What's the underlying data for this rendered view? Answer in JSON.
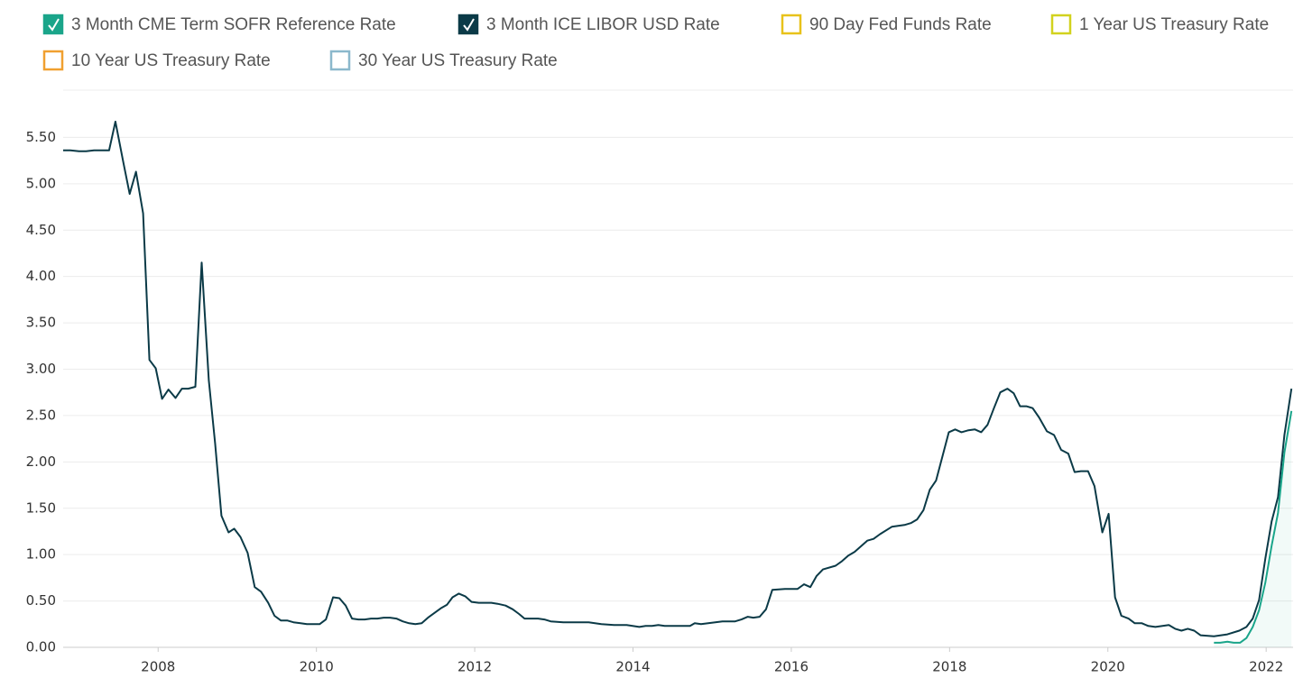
{
  "chart_data": {
    "type": "line",
    "series": [
      {
        "name": "3 Month CME Term SOFR Reference Rate",
        "color": "#1aa58a",
        "visible": true,
        "area": true,
        "x": [
          2021.34,
          2021.42,
          2021.51,
          2021.59,
          2021.67,
          2021.75,
          2021.83,
          2021.91,
          2021.99,
          2022.07,
          2022.15,
          2022.23,
          2022.32
        ],
        "values": [
          0.05,
          0.05,
          0.06,
          0.05,
          0.05,
          0.1,
          0.22,
          0.4,
          0.7,
          1.1,
          1.45,
          2.1,
          2.55
        ]
      },
      {
        "name": "3 Month ICE LIBOR USD Rate",
        "color": "#0b3a47",
        "visible": true,
        "area": false,
        "x": [
          2006.8,
          2006.89,
          2007.0,
          2007.09,
          2007.19,
          2007.29,
          2007.38,
          2007.46,
          2007.56,
          2007.64,
          2007.72,
          2007.81,
          2007.89,
          2007.97,
          2008.05,
          2008.13,
          2008.22,
          2008.3,
          2008.38,
          2008.47,
          2008.55,
          2008.64,
          2008.72,
          2008.8,
          2008.89,
          2008.96,
          2009.04,
          2009.13,
          2009.22,
          2009.3,
          2009.39,
          2009.47,
          2009.55,
          2009.63,
          2009.71,
          2009.8,
          2009.88,
          2009.96,
          2010.04,
          2010.12,
          2010.21,
          2010.29,
          2010.37,
          2010.45,
          2010.53,
          2010.61,
          2010.69,
          2010.77,
          2010.85,
          2010.93,
          2011.01,
          2011.09,
          2011.17,
          2011.25,
          2011.33,
          2011.41,
          2011.57,
          2011.65,
          2011.72,
          2011.8,
          2011.88,
          2011.96,
          2012.05,
          2012.21,
          2012.29,
          2012.39,
          2012.48,
          2012.56,
          2012.63,
          2012.8,
          2012.88,
          2012.96,
          2013.12,
          2013.44,
          2013.6,
          2013.76,
          2013.92,
          2014.08,
          2014.16,
          2014.24,
          2014.32,
          2014.4,
          2014.64,
          2014.72,
          2014.78,
          2014.86,
          2015.13,
          2015.29,
          2015.37,
          2015.45,
          2015.52,
          2015.6,
          2015.68,
          2015.76,
          2015.92,
          2016.08,
          2016.16,
          2016.24,
          2016.32,
          2016.4,
          2016.56,
          2016.64,
          2016.72,
          2016.8,
          2016.96,
          2017.04,
          2017.12,
          2017.27,
          2017.43,
          2017.51,
          2017.59,
          2017.67,
          2017.75,
          2017.83,
          2017.99,
          2018.07,
          2018.15,
          2018.23,
          2018.32,
          2018.4,
          2018.48,
          2018.56,
          2018.64,
          2018.73,
          2018.81,
          2018.89,
          2018.97,
          2019.05,
          2019.13,
          2019.23,
          2019.32,
          2019.41,
          2019.5,
          2019.58,
          2019.66,
          2019.75,
          2019.83,
          2019.93,
          2020.01,
          2020.09,
          2020.17,
          2020.26,
          2020.34,
          2020.43,
          2020.51,
          2020.6,
          2020.69,
          2020.77,
          2020.85,
          2020.93,
          2021.01,
          2021.09,
          2021.17,
          2021.34,
          2021.51,
          2021.66,
          2021.75,
          2021.83,
          2021.91,
          2021.99,
          2022.07,
          2022.15,
          2022.23,
          2022.32
        ],
        "values": [
          5.36,
          5.36,
          5.35,
          5.35,
          5.36,
          5.36,
          5.36,
          5.67,
          5.23,
          4.89,
          5.13,
          4.68,
          3.1,
          3.01,
          2.68,
          2.78,
          2.69,
          2.79,
          2.79,
          2.81,
          4.15,
          2.88,
          2.2,
          1.42,
          1.24,
          1.28,
          1.19,
          1.02,
          0.65,
          0.6,
          0.48,
          0.34,
          0.29,
          0.29,
          0.27,
          0.26,
          0.25,
          0.25,
          0.25,
          0.3,
          0.54,
          0.53,
          0.45,
          0.31,
          0.3,
          0.3,
          0.31,
          0.31,
          0.32,
          0.32,
          0.31,
          0.28,
          0.26,
          0.25,
          0.26,
          0.32,
          0.42,
          0.46,
          0.54,
          0.58,
          0.55,
          0.49,
          0.48,
          0.48,
          0.47,
          0.45,
          0.41,
          0.36,
          0.31,
          0.31,
          0.3,
          0.28,
          0.27,
          0.27,
          0.25,
          0.24,
          0.24,
          0.22,
          0.23,
          0.23,
          0.24,
          0.23,
          0.23,
          0.23,
          0.26,
          0.25,
          0.28,
          0.28,
          0.3,
          0.33,
          0.32,
          0.33,
          0.41,
          0.62,
          0.63,
          0.63,
          0.68,
          0.65,
          0.77,
          0.84,
          0.88,
          0.93,
          0.99,
          1.03,
          1.15,
          1.17,
          1.22,
          1.3,
          1.32,
          1.34,
          1.38,
          1.48,
          1.7,
          1.8,
          2.32,
          2.35,
          2.32,
          2.34,
          2.35,
          2.32,
          2.4,
          2.58,
          2.75,
          2.79,
          2.74,
          2.6,
          2.6,
          2.58,
          2.48,
          2.33,
          2.29,
          2.13,
          2.09,
          1.89,
          1.9,
          1.9,
          1.74,
          1.24,
          1.44,
          0.54,
          0.34,
          0.31,
          0.26,
          0.26,
          0.23,
          0.22,
          0.23,
          0.24,
          0.2,
          0.18,
          0.2,
          0.18,
          0.13,
          0.12,
          0.14,
          0.18,
          0.22,
          0.31,
          0.51,
          0.96,
          1.36,
          1.62,
          2.29,
          2.79
        ]
      },
      {
        "name": "90 Day Fed Funds Rate",
        "color": "#e8c21a",
        "visible": false
      },
      {
        "name": "1 Year US Treasury Rate",
        "color": "#d2d21e",
        "visible": false
      },
      {
        "name": "10 Year US Treasury Rate",
        "color": "#f0a030",
        "visible": false
      },
      {
        "name": "30 Year US Treasury Rate",
        "color": "#8bb8cc",
        "visible": false
      }
    ],
    "xlim": [
      2006.8,
      2022.34
    ],
    "xticks": [
      2008,
      2010,
      2012,
      2014,
      2016,
      2018,
      2020,
      2022
    ],
    "ylim": [
      0,
      6
    ],
    "yticks": [
      {
        "value": 0,
        "label": "0.00"
      },
      {
        "value": 0.5,
        "label": "0.50"
      },
      {
        "value": 1,
        "label": "1.00"
      },
      {
        "value": 1.5,
        "label": "1.50"
      },
      {
        "value": 2,
        "label": "2.00"
      },
      {
        "value": 2.5,
        "label": "2.50"
      },
      {
        "value": 3,
        "label": "3.00"
      },
      {
        "value": 3.5,
        "label": "3.50"
      },
      {
        "value": 4,
        "label": "4.00"
      },
      {
        "value": 4.5,
        "label": "4.50"
      },
      {
        "value": 5,
        "label": "5.00"
      },
      {
        "value": 5.5,
        "label": "5.50"
      }
    ],
    "grid": true
  }
}
